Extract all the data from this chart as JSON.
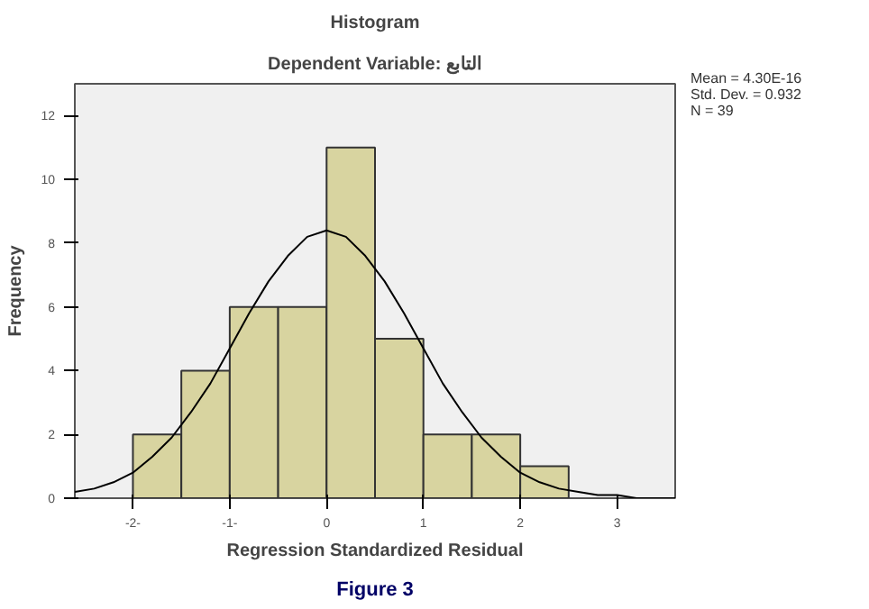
{
  "chart_data": {
    "type": "histogram",
    "title": "Histogram",
    "subtitle": "Dependent Variable: التابع",
    "xlabel": "Regression Standardized Residual",
    "ylabel": "Frequency",
    "bins": [
      -2,
      -1.5,
      -1,
      -0.5,
      0,
      0.5,
      1,
      1.5,
      2,
      2.5
    ],
    "values": [
      2,
      4,
      6,
      6,
      11,
      5,
      2,
      2,
      1
    ],
    "color": "#d8d4a0",
    "series": [
      {
        "type": "line",
        "color": "#000000",
        "x": [
          -2.6,
          -2.4,
          -2.2,
          -2.0,
          -1.8,
          -1.6,
          -1.4,
          -1.2,
          -1.0,
          -0.8,
          -0.6,
          -0.4,
          -0.2,
          0,
          0.2,
          0.4,
          0.6,
          0.8,
          1.0,
          1.2,
          1.4,
          1.6,
          1.8,
          2.0,
          2.2,
          2.4,
          2.6,
          2.8,
          3.0,
          3.2,
          3.4,
          3.6
        ],
        "values": [
          0.2,
          0.3,
          0.5,
          0.8,
          1.3,
          1.9,
          2.7,
          3.6,
          4.7,
          5.8,
          6.8,
          7.6,
          8.2,
          8.4,
          8.2,
          7.6,
          6.8,
          5.8,
          4.7,
          3.6,
          2.7,
          1.9,
          1.3,
          0.8,
          0.5,
          0.3,
          0.2,
          0.1,
          0.1,
          0.0,
          0.0,
          0.0
        ]
      }
    ],
    "xlim": [
      -2.6,
      3.6
    ],
    "ylim": [
      0,
      13
    ],
    "xticks": [
      {
        "value": -2,
        "label": "-2-"
      },
      {
        "value": -1,
        "label": "-1-"
      },
      0,
      1,
      2,
      3
    ],
    "yticks": [
      0,
      2,
      4,
      6,
      8,
      10,
      12
    ],
    "grid": false,
    "annotations": [
      "Mean = 4.30E-16",
      "Std. Dev. = 0.932",
      "N = 39",
      "Figure 3"
    ]
  }
}
